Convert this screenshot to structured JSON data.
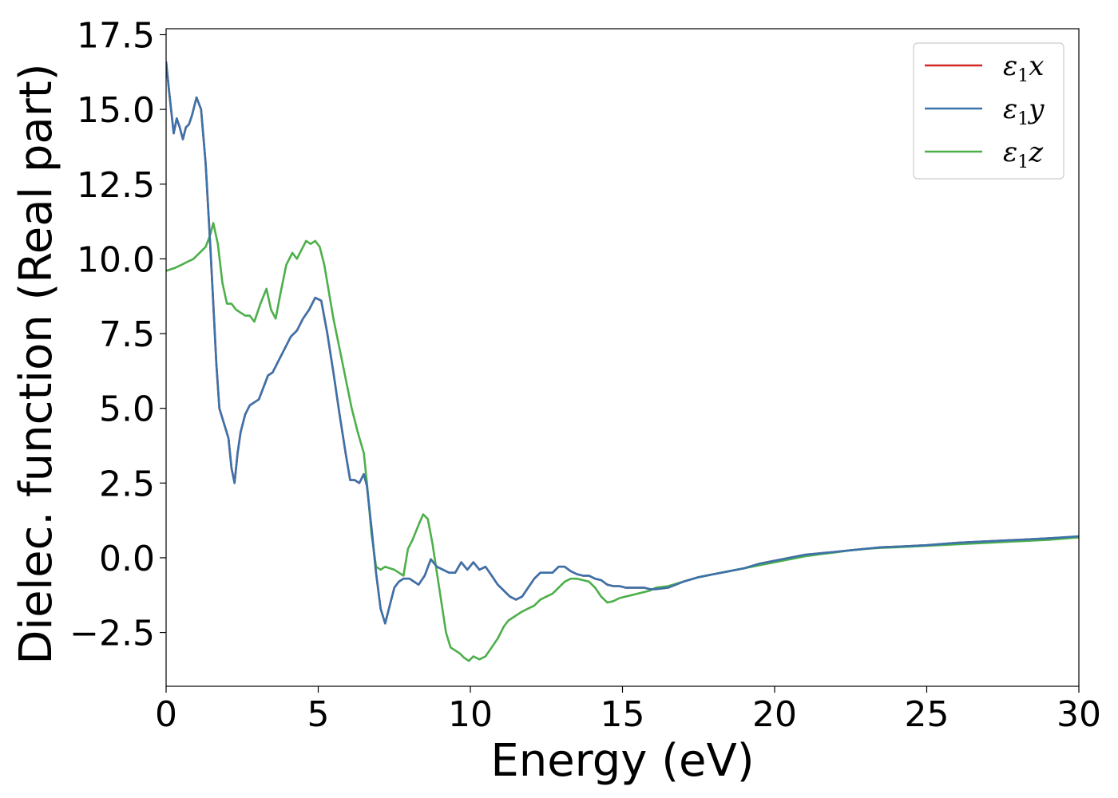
{
  "chart_data": {
    "type": "line",
    "xlabel": "Energy (eV)",
    "ylabel": "Dielec. function (Real part)",
    "xlim": [
      0,
      30
    ],
    "ylim": [
      -4.3,
      17.7
    ],
    "xticks": [
      0,
      5,
      10,
      15,
      20,
      25,
      30
    ],
    "xtick_labels": [
      "0",
      "5",
      "10",
      "15",
      "20",
      "25",
      "30"
    ],
    "yticks": [
      -2.5,
      0,
      2.5,
      5,
      7.5,
      10,
      12.5,
      15,
      17.5
    ],
    "ytick_labels": [
      "−2.5",
      "0.0",
      "2.5",
      "5.0",
      "7.5",
      "10.0",
      "12.5",
      "15.0",
      "17.5"
    ],
    "grid": false,
    "legend_position": "top-right",
    "series": [
      {
        "name": "ε",
        "subscript": "1",
        "suffix": "x",
        "color": "#d62728",
        "x": [
          0,
          0.1,
          0.25,
          0.35,
          0.45,
          0.55,
          0.65,
          0.75,
          0.85,
          1.0,
          1.15,
          1.3,
          1.45,
          1.55,
          1.65,
          1.75,
          1.9,
          2.05,
          2.15,
          2.25,
          2.35,
          2.45,
          2.6,
          2.75,
          2.9,
          3.05,
          3.2,
          3.35,
          3.5,
          3.7,
          3.9,
          4.1,
          4.3,
          4.5,
          4.7,
          4.9,
          5.1,
          5.3,
          5.5,
          5.7,
          5.9,
          6.05,
          6.2,
          6.35,
          6.5,
          6.6,
          6.75,
          6.9,
          7.05,
          7.2,
          7.35,
          7.5,
          7.65,
          7.8,
          8.0,
          8.15,
          8.3,
          8.5,
          8.7,
          8.9,
          9.1,
          9.3,
          9.5,
          9.7,
          9.9,
          10.1,
          10.3,
          10.5,
          10.7,
          10.9,
          11.1,
          11.3,
          11.5,
          11.7,
          11.9,
          12.1,
          12.3,
          12.5,
          12.7,
          12.9,
          13.1,
          13.3,
          13.5,
          13.7,
          13.9,
          14.1,
          14.3,
          14.5,
          14.7,
          14.9,
          15.1,
          15.3,
          15.5,
          15.7,
          15.9,
          16.1,
          16.5,
          17,
          17.5,
          18,
          18.5,
          19,
          19.5,
          20,
          20.5,
          21,
          21.5,
          22,
          22.5,
          23,
          23.5,
          24,
          25,
          26,
          27,
          28,
          29,
          30
        ],
        "y": [
          16.6,
          15.6,
          14.2,
          14.7,
          14.4,
          14.0,
          14.4,
          14.5,
          14.8,
          15.4,
          15.0,
          13.2,
          10.5,
          8.5,
          6.5,
          5.0,
          4.5,
          4.0,
          3.0,
          2.5,
          3.5,
          4.2,
          4.8,
          5.1,
          5.2,
          5.3,
          5.7,
          6.1,
          6.2,
          6.6,
          7.0,
          7.4,
          7.6,
          8.0,
          8.3,
          8.7,
          8.6,
          7.5,
          6.2,
          4.8,
          3.5,
          2.6,
          2.6,
          2.5,
          2.8,
          2.4,
          1.0,
          -0.5,
          -1.7,
          -2.2,
          -1.6,
          -1.0,
          -0.8,
          -0.7,
          -0.7,
          -0.8,
          -0.9,
          -0.6,
          -0.05,
          -0.3,
          -0.4,
          -0.5,
          -0.5,
          -0.15,
          -0.4,
          -0.15,
          -0.4,
          -0.3,
          -0.6,
          -0.9,
          -1.1,
          -1.3,
          -1.4,
          -1.3,
          -1.0,
          -0.7,
          -0.5,
          -0.5,
          -0.5,
          -0.3,
          -0.3,
          -0.45,
          -0.55,
          -0.6,
          -0.6,
          -0.7,
          -0.75,
          -0.9,
          -0.95,
          -0.95,
          -1.0,
          -1.0,
          -1.0,
          -1.0,
          -1.05,
          -1.05,
          -1.0,
          -0.8,
          -0.65,
          -0.55,
          -0.45,
          -0.35,
          -0.2,
          -0.1,
          0.0,
          0.1,
          0.15,
          0.2,
          0.25,
          0.3,
          0.35,
          0.37,
          0.42,
          0.5,
          0.55,
          0.6,
          0.65,
          0.7
        ]
      },
      {
        "name": "ε",
        "subscript": "1",
        "suffix": "y",
        "color": "#3a72ab",
        "x": [
          0,
          0.1,
          0.25,
          0.35,
          0.45,
          0.55,
          0.65,
          0.75,
          0.85,
          1.0,
          1.15,
          1.3,
          1.45,
          1.55,
          1.65,
          1.75,
          1.9,
          2.05,
          2.15,
          2.25,
          2.35,
          2.45,
          2.6,
          2.75,
          2.9,
          3.05,
          3.2,
          3.35,
          3.5,
          3.7,
          3.9,
          4.1,
          4.3,
          4.5,
          4.7,
          4.9,
          5.1,
          5.3,
          5.5,
          5.7,
          5.9,
          6.05,
          6.2,
          6.35,
          6.5,
          6.6,
          6.75,
          6.9,
          7.05,
          7.2,
          7.35,
          7.5,
          7.65,
          7.8,
          8.0,
          8.15,
          8.3,
          8.5,
          8.7,
          8.9,
          9.1,
          9.3,
          9.5,
          9.7,
          9.9,
          10.1,
          10.3,
          10.5,
          10.7,
          10.9,
          11.1,
          11.3,
          11.5,
          11.7,
          11.9,
          12.1,
          12.3,
          12.5,
          12.7,
          12.9,
          13.1,
          13.3,
          13.5,
          13.7,
          13.9,
          14.1,
          14.3,
          14.5,
          14.7,
          14.9,
          15.1,
          15.3,
          15.5,
          15.7,
          15.9,
          16.1,
          16.5,
          17,
          17.5,
          18,
          18.5,
          19,
          19.5,
          20,
          20.5,
          21,
          21.5,
          22,
          22.5,
          23,
          23.5,
          24,
          25,
          26,
          27,
          28,
          29,
          30
        ],
        "y": [
          16.6,
          15.6,
          14.2,
          14.7,
          14.4,
          14.0,
          14.4,
          14.5,
          14.8,
          15.4,
          15.0,
          13.2,
          10.5,
          8.5,
          6.5,
          5.0,
          4.5,
          4.0,
          3.0,
          2.5,
          3.5,
          4.2,
          4.8,
          5.1,
          5.2,
          5.3,
          5.7,
          6.1,
          6.2,
          6.6,
          7.0,
          7.4,
          7.6,
          8.0,
          8.3,
          8.7,
          8.6,
          7.5,
          6.2,
          4.8,
          3.5,
          2.6,
          2.6,
          2.5,
          2.8,
          2.4,
          1.0,
          -0.5,
          -1.7,
          -2.2,
          -1.6,
          -1.0,
          -0.8,
          -0.7,
          -0.7,
          -0.8,
          -0.9,
          -0.6,
          -0.05,
          -0.3,
          -0.4,
          -0.5,
          -0.5,
          -0.15,
          -0.4,
          -0.15,
          -0.4,
          -0.3,
          -0.6,
          -0.9,
          -1.1,
          -1.3,
          -1.4,
          -1.3,
          -1.0,
          -0.7,
          -0.5,
          -0.5,
          -0.5,
          -0.3,
          -0.3,
          -0.45,
          -0.55,
          -0.6,
          -0.6,
          -0.7,
          -0.75,
          -0.9,
          -0.95,
          -0.95,
          -1.0,
          -1.0,
          -1.0,
          -1.0,
          -1.05,
          -1.05,
          -1.0,
          -0.8,
          -0.65,
          -0.55,
          -0.45,
          -0.35,
          -0.2,
          -0.1,
          0.0,
          0.1,
          0.15,
          0.2,
          0.25,
          0.3,
          0.35,
          0.37,
          0.42,
          0.5,
          0.55,
          0.6,
          0.65,
          0.72
        ]
      },
      {
        "name": "ε",
        "subscript": "1",
        "suffix": "z",
        "color": "#4daf4a",
        "x": [
          0,
          0.3,
          0.5,
          0.7,
          0.9,
          1.1,
          1.3,
          1.45,
          1.55,
          1.7,
          1.85,
          2.0,
          2.15,
          2.3,
          2.45,
          2.6,
          2.75,
          2.9,
          3.1,
          3.3,
          3.45,
          3.6,
          3.75,
          3.95,
          4.15,
          4.3,
          4.45,
          4.6,
          4.75,
          4.9,
          5.05,
          5.2,
          5.35,
          5.5,
          5.7,
          5.9,
          6.1,
          6.3,
          6.5,
          6.6,
          6.75,
          6.9,
          7.05,
          7.2,
          7.35,
          7.5,
          7.65,
          7.8,
          7.95,
          8.1,
          8.3,
          8.45,
          8.6,
          8.75,
          8.9,
          9.05,
          9.2,
          9.35,
          9.5,
          9.65,
          9.8,
          9.95,
          10.1,
          10.3,
          10.5,
          10.7,
          10.9,
          11.1,
          11.25,
          11.4,
          11.55,
          11.7,
          11.9,
          12.1,
          12.3,
          12.5,
          12.7,
          12.9,
          13.1,
          13.3,
          13.5,
          13.7,
          13.9,
          14.1,
          14.3,
          14.5,
          14.7,
          14.9,
          15.1,
          15.3,
          15.5,
          15.7,
          15.9,
          16.1,
          16.5,
          17,
          17.5,
          18,
          18.5,
          19,
          19.5,
          20,
          20.5,
          21,
          21.5,
          22,
          22.5,
          23,
          23.5,
          24,
          25,
          26,
          27,
          28,
          29,
          30
        ],
        "y": [
          9.6,
          9.7,
          9.8,
          9.9,
          10.0,
          10.2,
          10.4,
          10.8,
          11.2,
          10.5,
          9.2,
          8.5,
          8.5,
          8.3,
          8.2,
          8.1,
          8.1,
          7.9,
          8.5,
          9.0,
          8.3,
          8.0,
          8.8,
          9.8,
          10.2,
          10.0,
          10.3,
          10.6,
          10.5,
          10.6,
          10.4,
          9.8,
          8.9,
          8.0,
          7.0,
          6.0,
          5.0,
          4.2,
          3.5,
          2.5,
          0.8,
          -0.3,
          -0.4,
          -0.3,
          -0.35,
          -0.4,
          -0.5,
          -0.6,
          0.3,
          0.6,
          1.1,
          1.45,
          1.3,
          0.5,
          -0.5,
          -1.5,
          -2.5,
          -3.0,
          -3.1,
          -3.2,
          -3.35,
          -3.45,
          -3.3,
          -3.4,
          -3.3,
          -3.0,
          -2.7,
          -2.3,
          -2.1,
          -2.0,
          -1.9,
          -1.8,
          -1.7,
          -1.6,
          -1.4,
          -1.3,
          -1.2,
          -1.0,
          -0.8,
          -0.7,
          -0.7,
          -0.75,
          -0.8,
          -1.0,
          -1.3,
          -1.5,
          -1.45,
          -1.35,
          -1.3,
          -1.25,
          -1.2,
          -1.15,
          -1.1,
          -1.0,
          -0.95,
          -0.8,
          -0.65,
          -0.55,
          -0.45,
          -0.35,
          -0.25,
          -0.15,
          -0.05,
          0.05,
          0.12,
          0.18,
          0.25,
          0.3,
          0.33,
          0.35,
          0.4,
          0.45,
          0.5,
          0.55,
          0.6,
          0.68
        ]
      }
    ]
  }
}
